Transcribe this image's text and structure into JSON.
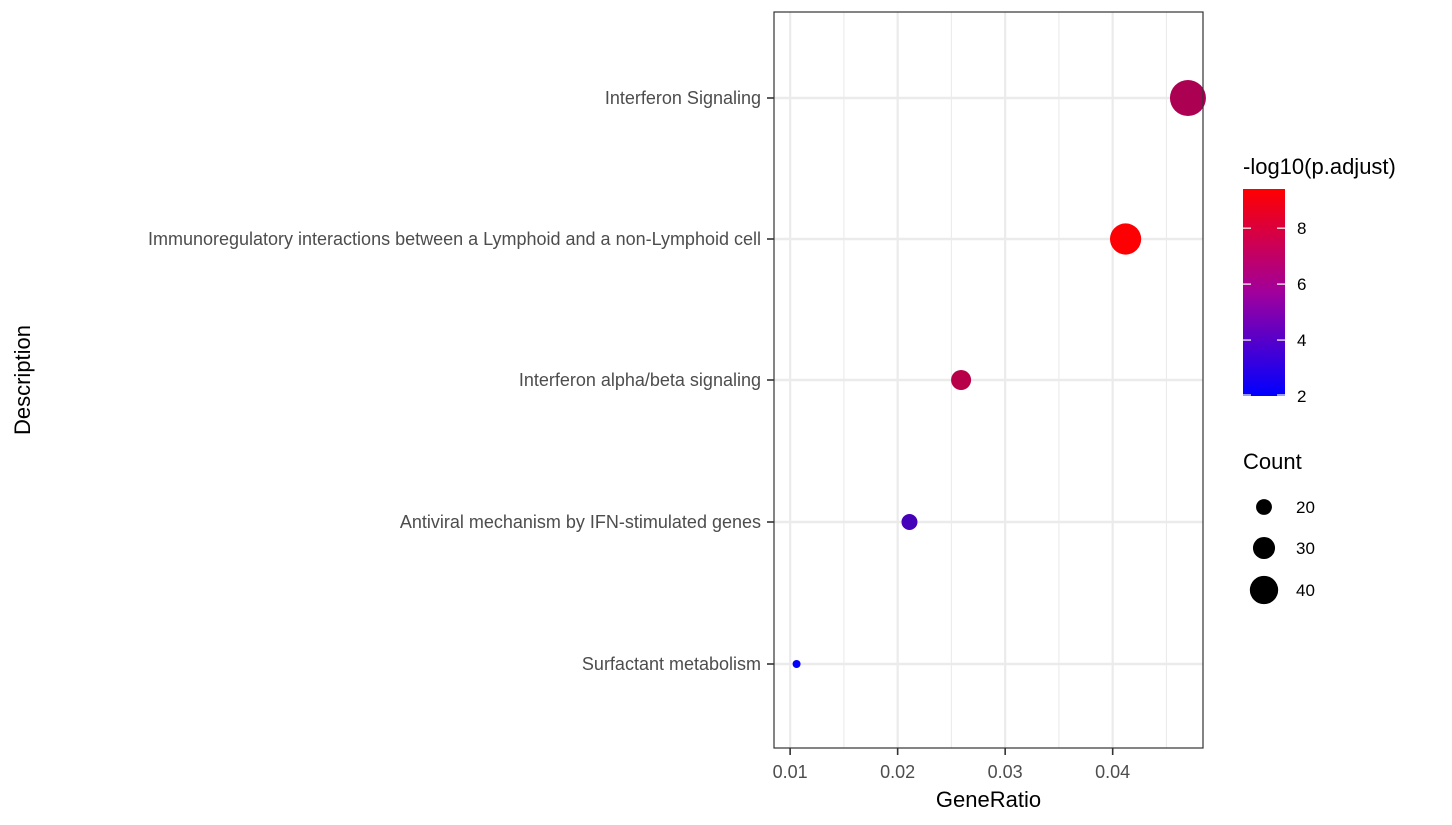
{
  "chart_data": {
    "type": "scatter",
    "xlabel": "GeneRatio",
    "ylabel": "Description",
    "xlim": [
      0.0085,
      0.0484
    ],
    "xticks": [
      0.01,
      0.02,
      0.03,
      0.04
    ],
    "xtick_labels": [
      "0.01",
      "0.02",
      "0.03",
      "0.04"
    ],
    "grid": true,
    "categories": [
      "Interferon Signaling",
      "Immunoregulatory interactions between a Lymphoid and a non-Lymphoid cell",
      "Interferon alpha/beta signaling",
      "Antiviral mechanism by IFN-stimulated genes",
      "Surfactant metabolism"
    ],
    "points": [
      {
        "description": "Interferon Signaling",
        "gene_ratio": 0.047,
        "count": 46,
        "neg_log10_padj": 7.0
      },
      {
        "description": "Immunoregulatory interactions between a Lymphoid and a non-Lymphoid cell",
        "gene_ratio": 0.0412,
        "count": 40,
        "neg_log10_padj": 9.3
      },
      {
        "description": "Interferon alpha/beta signaling",
        "gene_ratio": 0.0259,
        "count": 26,
        "neg_log10_padj": 7.3
      },
      {
        "description": "Antiviral mechanism by IFN-stimulated genes",
        "gene_ratio": 0.0211,
        "count": 21,
        "neg_log10_padj": 4.0
      },
      {
        "description": "Surfactant metabolism",
        "gene_ratio": 0.0106,
        "count": 11,
        "neg_log10_padj": 2.1
      }
    ],
    "color_legend": {
      "title": "-log10(p.adjust)",
      "min": 2.0,
      "max": 9.4,
      "ticks": [
        2,
        4,
        6,
        8
      ],
      "tick_labels": [
        "2",
        "4",
        "6",
        "8"
      ],
      "low_color": "#0000ff",
      "high_color": "#ff0000"
    },
    "size_legend": {
      "title": "Count",
      "values": [
        20,
        30,
        40
      ],
      "labels": [
        "20",
        "30",
        "40"
      ]
    },
    "legend_position": "right"
  }
}
